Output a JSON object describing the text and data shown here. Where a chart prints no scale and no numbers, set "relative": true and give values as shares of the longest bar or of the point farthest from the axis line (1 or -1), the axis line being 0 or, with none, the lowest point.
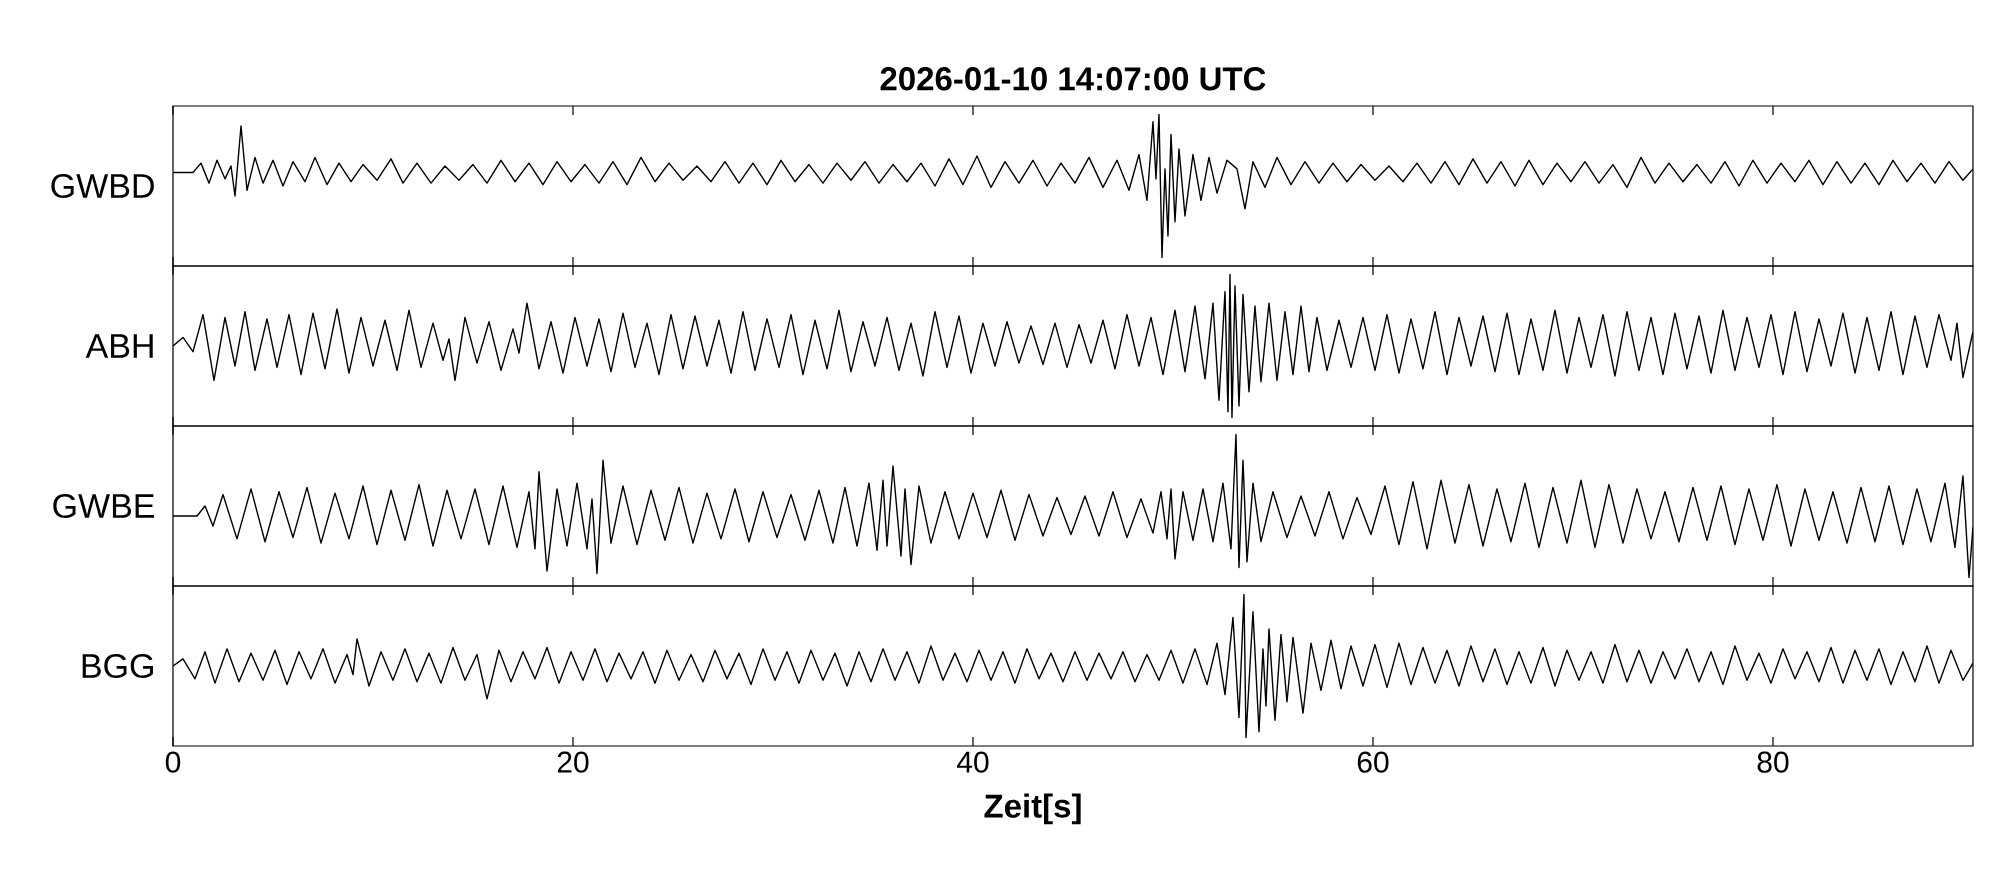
{
  "chart_data": [
    {
      "type": "line",
      "title": "2026-01-10 14:07:00 UTC",
      "ylabel": "GWBD",
      "relative": true,
      "color": "#000000",
      "xlim": [
        0,
        90
      ],
      "xticks": [
        0,
        20,
        40,
        60,
        80
      ],
      "tick_labels": false,
      "x": [
        0,
        1.0,
        1.4,
        1.8,
        2.2,
        2.6,
        2.9,
        3.1,
        3.4,
        3.7,
        4.1,
        4.5,
        5.0,
        5.5,
        6.0,
        6.6,
        7.1,
        7.7,
        8.3,
        8.9,
        9.5,
        10.2,
        10.9,
        11.5,
        12.2,
        12.9,
        13.6,
        14.3,
        15.0,
        15.7,
        16.4,
        17.1,
        17.8,
        18.5,
        19.2,
        19.9,
        20.6,
        21.3,
        22.0,
        22.7,
        23.4,
        24.1,
        24.8,
        25.5,
        26.2,
        26.9,
        27.6,
        28.3,
        29.0,
        29.7,
        30.4,
        31.1,
        31.8,
        32.5,
        33.2,
        33.9,
        34.6,
        35.3,
        36.0,
        36.7,
        37.4,
        38.1,
        38.8,
        39.5,
        40.2,
        40.9,
        41.6,
        42.3,
        43.0,
        43.7,
        44.4,
        45.1,
        45.8,
        46.5,
        47.2,
        47.8,
        48.3,
        48.7,
        49.0,
        49.15,
        49.3,
        49.45,
        49.6,
        49.75,
        49.9,
        50.1,
        50.3,
        50.6,
        51.0,
        51.4,
        51.8,
        52.2,
        52.7,
        53.2,
        53.6,
        54.0,
        54.6,
        55.2,
        55.9,
        56.6,
        57.3,
        58.0,
        58.7,
        59.4,
        60.1,
        60.8,
        61.5,
        62.2,
        62.9,
        63.6,
        64.3,
        65.0,
        65.7,
        66.4,
        67.1,
        67.8,
        68.5,
        69.2,
        69.9,
        70.6,
        71.3,
        72.0,
        72.7,
        73.4,
        74.1,
        74.8,
        75.5,
        76.2,
        76.9,
        77.6,
        78.3,
        79.0,
        79.7,
        80.4,
        81.1,
        81.8,
        82.5,
        83.2,
        83.9,
        84.6,
        85.3,
        86.0,
        86.7,
        87.4,
        88.1,
        88.8,
        89.5,
        90.0
      ],
      "values": [
        0.594,
        0.594,
        0.66,
        0.52,
        0.68,
        0.55,
        0.64,
        0.43,
        0.92,
        0.47,
        0.7,
        0.52,
        0.68,
        0.5,
        0.67,
        0.53,
        0.7,
        0.51,
        0.66,
        0.53,
        0.65,
        0.54,
        0.69,
        0.52,
        0.66,
        0.52,
        0.64,
        0.54,
        0.65,
        0.52,
        0.68,
        0.53,
        0.66,
        0.51,
        0.67,
        0.53,
        0.65,
        0.52,
        0.67,
        0.51,
        0.7,
        0.53,
        0.66,
        0.54,
        0.64,
        0.53,
        0.67,
        0.52,
        0.66,
        0.51,
        0.68,
        0.53,
        0.65,
        0.52,
        0.66,
        0.54,
        0.67,
        0.52,
        0.65,
        0.53,
        0.66,
        0.5,
        0.69,
        0.51,
        0.71,
        0.49,
        0.67,
        0.52,
        0.68,
        0.5,
        0.66,
        0.52,
        0.7,
        0.49,
        0.68,
        0.47,
        0.72,
        0.4,
        0.95,
        0.55,
        1.0,
        0.0,
        0.62,
        0.15,
        0.86,
        0.25,
        0.76,
        0.29,
        0.72,
        0.4,
        0.7,
        0.45,
        0.68,
        0.62,
        0.34,
        0.67,
        0.49,
        0.7,
        0.51,
        0.67,
        0.52,
        0.66,
        0.53,
        0.65,
        0.54,
        0.64,
        0.53,
        0.66,
        0.52,
        0.67,
        0.51,
        0.69,
        0.52,
        0.67,
        0.5,
        0.68,
        0.51,
        0.66,
        0.53,
        0.67,
        0.52,
        0.65,
        0.49,
        0.7,
        0.52,
        0.66,
        0.53,
        0.65,
        0.52,
        0.67,
        0.5,
        0.68,
        0.52,
        0.66,
        0.53,
        0.68,
        0.51,
        0.67,
        0.52,
        0.66,
        0.51,
        0.68,
        0.53,
        0.66,
        0.52,
        0.67,
        0.54,
        0.62
      ]
    },
    {
      "type": "line",
      "ylabel": "ABH",
      "relative": true,
      "color": "#000000",
      "xlim": [
        0,
        90
      ],
      "xticks": [
        0,
        20,
        40,
        60,
        80
      ],
      "tick_labels": false,
      "x": [
        0,
        0.5,
        1.0,
        1.5,
        2.05,
        2.6,
        3.1,
        3.6,
        4.1,
        4.7,
        5.2,
        5.8,
        6.4,
        7.0,
        7.6,
        8.2,
        8.8,
        9.4,
        10.0,
        10.6,
        11.2,
        11.8,
        12.4,
        13.0,
        13.5,
        13.8,
        14.1,
        14.6,
        15.2,
        15.8,
        16.4,
        17.0,
        17.3,
        17.7,
        18.3,
        18.9,
        19.5,
        20.1,
        20.7,
        21.3,
        21.9,
        22.5,
        23.1,
        23.7,
        24.3,
        24.9,
        25.5,
        26.1,
        26.7,
        27.3,
        27.9,
        28.5,
        29.1,
        29.7,
        30.3,
        30.9,
        31.5,
        32.1,
        32.7,
        33.3,
        33.9,
        34.5,
        35.1,
        35.7,
        36.3,
        36.9,
        37.5,
        38.1,
        38.7,
        39.3,
        39.9,
        40.5,
        41.1,
        41.7,
        42.3,
        42.9,
        43.5,
        44.1,
        44.7,
        45.3,
        45.9,
        46.5,
        47.1,
        47.7,
        48.3,
        48.9,
        49.5,
        50.1,
        50.6,
        51.1,
        51.6,
        52.0,
        52.3,
        52.6,
        52.75,
        52.85,
        52.95,
        53.1,
        53.3,
        53.5,
        53.8,
        54.1,
        54.4,
        54.8,
        55.2,
        55.6,
        56.0,
        56.4,
        56.8,
        57.2,
        57.7,
        58.3,
        58.9,
        59.5,
        60.1,
        60.7,
        61.3,
        61.9,
        62.5,
        63.1,
        63.7,
        64.3,
        64.9,
        65.5,
        66.1,
        66.7,
        67.3,
        67.9,
        68.5,
        69.1,
        69.7,
        70.3,
        70.9,
        71.5,
        72.1,
        72.7,
        73.3,
        73.9,
        74.5,
        75.1,
        75.7,
        76.3,
        76.9,
        77.5,
        78.1,
        78.7,
        79.3,
        79.9,
        80.5,
        81.1,
        81.7,
        82.3,
        82.9,
        83.5,
        84.1,
        84.7,
        85.3,
        85.9,
        86.5,
        87.1,
        87.7,
        88.3,
        88.9,
        89.2,
        89.5,
        90.0
      ],
      "values": [
        0.5,
        0.56,
        0.46,
        0.72,
        0.26,
        0.7,
        0.36,
        0.74,
        0.33,
        0.69,
        0.35,
        0.72,
        0.3,
        0.73,
        0.34,
        0.76,
        0.31,
        0.7,
        0.36,
        0.68,
        0.33,
        0.75,
        0.35,
        0.66,
        0.4,
        0.55,
        0.26,
        0.7,
        0.38,
        0.67,
        0.33,
        0.62,
        0.45,
        0.8,
        0.34,
        0.67,
        0.31,
        0.7,
        0.36,
        0.69,
        0.32,
        0.73,
        0.35,
        0.66,
        0.3,
        0.72,
        0.34,
        0.71,
        0.36,
        0.68,
        0.31,
        0.74,
        0.33,
        0.69,
        0.35,
        0.72,
        0.3,
        0.68,
        0.34,
        0.75,
        0.32,
        0.67,
        0.36,
        0.7,
        0.33,
        0.66,
        0.29,
        0.74,
        0.35,
        0.71,
        0.31,
        0.66,
        0.36,
        0.67,
        0.38,
        0.64,
        0.37,
        0.66,
        0.35,
        0.65,
        0.38,
        0.68,
        0.34,
        0.72,
        0.36,
        0.7,
        0.3,
        0.75,
        0.32,
        0.78,
        0.27,
        0.8,
        0.12,
        0.88,
        0.04,
        1.0,
        0.0,
        0.92,
        0.08,
        0.86,
        0.18,
        0.78,
        0.25,
        0.8,
        0.26,
        0.74,
        0.3,
        0.78,
        0.32,
        0.7,
        0.33,
        0.68,
        0.35,
        0.7,
        0.33,
        0.72,
        0.31,
        0.69,
        0.34,
        0.74,
        0.3,
        0.7,
        0.36,
        0.71,
        0.32,
        0.73,
        0.3,
        0.69,
        0.33,
        0.75,
        0.31,
        0.7,
        0.35,
        0.72,
        0.29,
        0.74,
        0.33,
        0.7,
        0.3,
        0.73,
        0.34,
        0.71,
        0.31,
        0.75,
        0.33,
        0.7,
        0.35,
        0.72,
        0.3,
        0.74,
        0.32,
        0.69,
        0.36,
        0.73,
        0.31,
        0.7,
        0.33,
        0.74,
        0.3,
        0.71,
        0.35,
        0.72,
        0.4,
        0.66,
        0.28,
        0.6
      ]
    },
    {
      "type": "line",
      "ylabel": "GWBE",
      "relative": true,
      "color": "#000000",
      "xlim": [
        0,
        90
      ],
      "xticks": [
        0,
        20,
        40,
        60,
        80
      ],
      "tick_labels": false,
      "x": [
        0,
        1.2,
        1.6,
        2.0,
        2.5,
        3.2,
        3.9,
        4.6,
        5.3,
        6.0,
        6.7,
        7.4,
        8.1,
        8.8,
        9.5,
        10.2,
        10.9,
        11.6,
        12.3,
        13.0,
        13.7,
        14.4,
        15.1,
        15.8,
        16.5,
        17.2,
        17.8,
        18.1,
        18.3,
        18.7,
        19.2,
        19.7,
        20.2,
        20.7,
        20.95,
        21.2,
        21.5,
        21.9,
        22.5,
        23.2,
        23.9,
        24.6,
        25.3,
        26.0,
        26.7,
        27.4,
        28.1,
        28.8,
        29.5,
        30.2,
        30.9,
        31.6,
        32.3,
        33.0,
        33.6,
        34.2,
        34.8,
        35.2,
        35.5,
        35.7,
        36.0,
        36.4,
        36.6,
        36.9,
        37.3,
        37.9,
        38.6,
        39.3,
        40.0,
        40.7,
        41.4,
        42.1,
        42.8,
        43.5,
        44.2,
        44.9,
        45.6,
        46.3,
        47.0,
        47.7,
        48.4,
        49.0,
        49.4,
        49.7,
        49.9,
        50.1,
        50.5,
        51.0,
        51.5,
        52.0,
        52.5,
        52.9,
        53.15,
        53.3,
        53.5,
        53.7,
        54.0,
        54.4,
        55.0,
        55.7,
        56.4,
        57.1,
        57.8,
        58.5,
        59.2,
        59.9,
        60.6,
        61.3,
        62.0,
        62.7,
        63.4,
        64.1,
        64.8,
        65.5,
        66.2,
        66.9,
        67.6,
        68.3,
        69.0,
        69.7,
        70.4,
        71.1,
        71.8,
        72.5,
        73.2,
        73.9,
        74.6,
        75.3,
        76.0,
        76.7,
        77.4,
        78.1,
        78.8,
        79.5,
        80.2,
        80.9,
        81.6,
        82.3,
        83.0,
        83.7,
        84.4,
        85.1,
        85.8,
        86.5,
        87.2,
        87.9,
        88.6,
        89.1,
        89.5,
        89.8,
        90.0
      ],
      "values": [
        0.43,
        0.43,
        0.5,
        0.36,
        0.58,
        0.27,
        0.62,
        0.25,
        0.6,
        0.28,
        0.63,
        0.24,
        0.59,
        0.27,
        0.64,
        0.23,
        0.61,
        0.26,
        0.65,
        0.22,
        0.61,
        0.27,
        0.62,
        0.23,
        0.64,
        0.21,
        0.6,
        0.2,
        0.74,
        0.045,
        0.62,
        0.22,
        0.66,
        0.2,
        0.55,
        0.027,
        0.82,
        0.24,
        0.64,
        0.23,
        0.61,
        0.26,
        0.63,
        0.24,
        0.59,
        0.27,
        0.62,
        0.25,
        0.6,
        0.28,
        0.58,
        0.26,
        0.61,
        0.24,
        0.63,
        0.22,
        0.66,
        0.19,
        0.68,
        0.22,
        0.78,
        0.15,
        0.62,
        0.09,
        0.64,
        0.24,
        0.6,
        0.27,
        0.59,
        0.28,
        0.61,
        0.26,
        0.58,
        0.29,
        0.56,
        0.3,
        0.57,
        0.29,
        0.6,
        0.28,
        0.55,
        0.31,
        0.6,
        0.27,
        0.62,
        0.13,
        0.6,
        0.26,
        0.62,
        0.25,
        0.66,
        0.2,
        1.0,
        0.07,
        0.82,
        0.11,
        0.66,
        0.25,
        0.6,
        0.28,
        0.57,
        0.29,
        0.6,
        0.27,
        0.56,
        0.3,
        0.64,
        0.23,
        0.67,
        0.2,
        0.68,
        0.24,
        0.65,
        0.22,
        0.62,
        0.25,
        0.66,
        0.21,
        0.63,
        0.24,
        0.68,
        0.21,
        0.65,
        0.24,
        0.62,
        0.27,
        0.6,
        0.25,
        0.63,
        0.26,
        0.64,
        0.23,
        0.62,
        0.26,
        0.65,
        0.22,
        0.62,
        0.26,
        0.6,
        0.24,
        0.63,
        0.25,
        0.64,
        0.23,
        0.62,
        0.25,
        0.66,
        0.21,
        0.71,
        0.0,
        0.35
      ]
    },
    {
      "type": "line",
      "ylabel": "BGG",
      "xlabel": "Zeit[s]",
      "relative": true,
      "color": "#000000",
      "xlim": [
        0,
        90
      ],
      "xticks": [
        0,
        20,
        40,
        60,
        80
      ],
      "tick_labels": "x",
      "x": [
        0,
        0.5,
        1.1,
        1.6,
        2.1,
        2.7,
        3.3,
        3.9,
        4.5,
        5.1,
        5.7,
        6.3,
        6.9,
        7.5,
        8.1,
        8.7,
        9.0,
        9.2,
        9.8,
        10.4,
        11.0,
        11.6,
        12.2,
        12.8,
        13.4,
        14.0,
        14.6,
        15.2,
        15.7,
        16.3,
        16.9,
        17.5,
        18.1,
        18.7,
        19.3,
        19.9,
        20.5,
        21.1,
        21.7,
        22.3,
        22.9,
        23.5,
        24.1,
        24.7,
        25.3,
        25.9,
        26.5,
        27.1,
        27.7,
        28.3,
        28.9,
        29.5,
        30.1,
        30.7,
        31.3,
        31.9,
        32.5,
        33.1,
        33.7,
        34.3,
        34.9,
        35.5,
        36.1,
        36.7,
        37.3,
        37.9,
        38.5,
        39.1,
        39.7,
        40.3,
        40.9,
        41.5,
        42.1,
        42.7,
        43.3,
        43.9,
        44.5,
        45.1,
        45.7,
        46.3,
        46.9,
        47.5,
        48.1,
        48.7,
        49.3,
        49.9,
        50.5,
        51.1,
        51.7,
        52.2,
        52.6,
        53.0,
        53.3,
        53.55,
        53.65,
        54.0,
        54.3,
        54.5,
        54.65,
        54.8,
        55.1,
        55.4,
        55.7,
        56.0,
        56.5,
        56.9,
        57.4,
        57.9,
        58.4,
        58.9,
        59.5,
        60.1,
        60.7,
        61.3,
        61.9,
        62.5,
        63.1,
        63.7,
        64.3,
        64.9,
        65.5,
        66.1,
        66.7,
        67.3,
        67.9,
        68.5,
        69.1,
        69.7,
        70.3,
        70.9,
        71.5,
        72.1,
        72.7,
        73.3,
        73.9,
        74.5,
        75.1,
        75.7,
        76.3,
        76.9,
        77.5,
        78.1,
        78.7,
        79.3,
        79.9,
        80.5,
        81.1,
        81.7,
        82.3,
        82.9,
        83.5,
        84.1,
        84.7,
        85.3,
        85.9,
        86.5,
        87.1,
        87.7,
        88.3,
        88.9,
        89.5,
        90.0
      ],
      "values": [
        0.5,
        0.55,
        0.41,
        0.6,
        0.38,
        0.62,
        0.39,
        0.59,
        0.4,
        0.61,
        0.37,
        0.6,
        0.41,
        0.62,
        0.38,
        0.58,
        0.44,
        0.69,
        0.36,
        0.6,
        0.4,
        0.62,
        0.39,
        0.59,
        0.38,
        0.63,
        0.4,
        0.58,
        0.27,
        0.61,
        0.39,
        0.6,
        0.41,
        0.63,
        0.38,
        0.6,
        0.4,
        0.62,
        0.39,
        0.59,
        0.41,
        0.6,
        0.38,
        0.61,
        0.4,
        0.58,
        0.39,
        0.61,
        0.41,
        0.59,
        0.37,
        0.62,
        0.4,
        0.6,
        0.38,
        0.61,
        0.4,
        0.59,
        0.36,
        0.6,
        0.39,
        0.62,
        0.4,
        0.6,
        0.38,
        0.64,
        0.4,
        0.59,
        0.39,
        0.61,
        0.4,
        0.6,
        0.38,
        0.62,
        0.41,
        0.59,
        0.39,
        0.6,
        0.4,
        0.59,
        0.41,
        0.6,
        0.39,
        0.58,
        0.4,
        0.61,
        0.38,
        0.62,
        0.37,
        0.66,
        0.3,
        0.84,
        0.14,
        1.0,
        0.0,
        0.88,
        0.04,
        0.62,
        0.22,
        0.76,
        0.12,
        0.72,
        0.25,
        0.7,
        0.17,
        0.66,
        0.33,
        0.68,
        0.34,
        0.64,
        0.36,
        0.65,
        0.35,
        0.66,
        0.37,
        0.63,
        0.38,
        0.61,
        0.36,
        0.64,
        0.39,
        0.62,
        0.37,
        0.6,
        0.38,
        0.63,
        0.36,
        0.61,
        0.4,
        0.6,
        0.38,
        0.65,
        0.39,
        0.61,
        0.38,
        0.6,
        0.41,
        0.62,
        0.39,
        0.6,
        0.37,
        0.64,
        0.4,
        0.59,
        0.38,
        0.62,
        0.41,
        0.6,
        0.39,
        0.63,
        0.38,
        0.61,
        0.4,
        0.62,
        0.37,
        0.6,
        0.39,
        0.64,
        0.38,
        0.61,
        0.4,
        0.52
      ]
    }
  ]
}
